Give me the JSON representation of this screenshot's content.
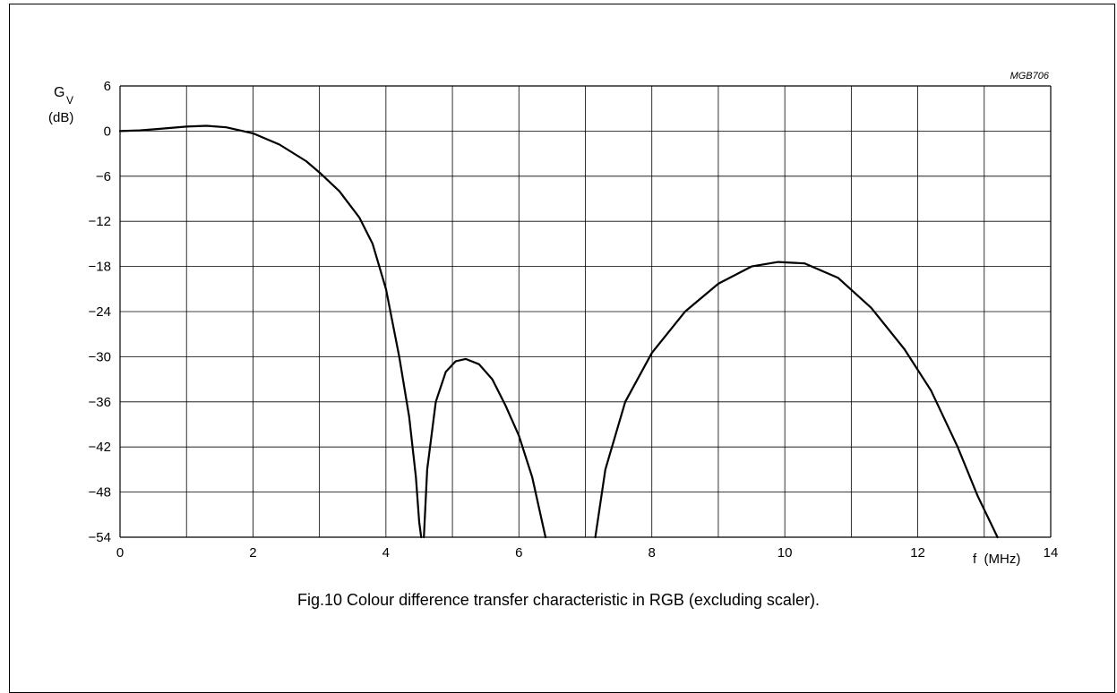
{
  "caption": "Fig.10  Colour difference transfer characteristic in RGB (excluding scaler).",
  "chart_data": {
    "type": "line",
    "code_label": "MGB706",
    "ylabel_main": "G",
    "ylabel_sub": "V",
    "ylabel_unit": "(dB)",
    "xlabel": "f  (MHz)",
    "xlim": [
      0,
      14
    ],
    "ylim": [
      -54,
      6
    ],
    "x_ticks": [
      "0",
      "2",
      "4",
      "6",
      "8",
      "10",
      "12",
      "14"
    ],
    "y_ticks": [
      "6",
      "0",
      "−6",
      "−12",
      "−18",
      "−24",
      "−30",
      "−36",
      "−42",
      "−48",
      "−54"
    ],
    "grid": true,
    "series": [
      {
        "segments": [
          [
            [
              0,
              0
            ],
            [
              0.3,
              0.1
            ],
            [
              0.6,
              0.3
            ],
            [
              1.0,
              0.6
            ],
            [
              1.3,
              0.7
            ],
            [
              1.6,
              0.5
            ],
            [
              2.0,
              -0.3
            ],
            [
              2.4,
              -1.8
            ],
            [
              2.8,
              -4.0
            ],
            [
              3.0,
              -5.5
            ],
            [
              3.3,
              -8.0
            ],
            [
              3.6,
              -11.5
            ],
            [
              3.8,
              -15.0
            ],
            [
              4.0,
              -21.0
            ],
            [
              4.2,
              -30.0
            ],
            [
              4.35,
              -38.0
            ],
            [
              4.45,
              -46.0
            ],
            [
              4.5,
              -52.0
            ],
            [
              4.53,
              -54.0
            ]
          ],
          [
            [
              4.57,
              -54.0
            ],
            [
              4.62,
              -45.0
            ],
            [
              4.75,
              -36.0
            ],
            [
              4.9,
              -32.0
            ],
            [
              5.05,
              -30.6
            ],
            [
              5.2,
              -30.3
            ],
            [
              5.4,
              -31.0
            ],
            [
              5.6,
              -33.0
            ],
            [
              5.8,
              -36.5
            ],
            [
              6.0,
              -40.5
            ],
            [
              6.2,
              -46.0
            ],
            [
              6.4,
              -54.0
            ]
          ],
          [
            [
              7.15,
              -54.0
            ],
            [
              7.3,
              -45.0
            ],
            [
              7.6,
              -36.0
            ],
            [
              8.0,
              -29.5
            ],
            [
              8.5,
              -24.0
            ],
            [
              9.0,
              -20.3
            ],
            [
              9.5,
              -18.0
            ],
            [
              9.9,
              -17.4
            ],
            [
              10.3,
              -17.6
            ],
            [
              10.8,
              -19.5
            ],
            [
              11.3,
              -23.5
            ],
            [
              11.8,
              -29.0
            ],
            [
              12.2,
              -34.5
            ],
            [
              12.6,
              -42.0
            ],
            [
              12.9,
              -48.5
            ],
            [
              13.2,
              -54.0
            ]
          ]
        ]
      }
    ]
  }
}
